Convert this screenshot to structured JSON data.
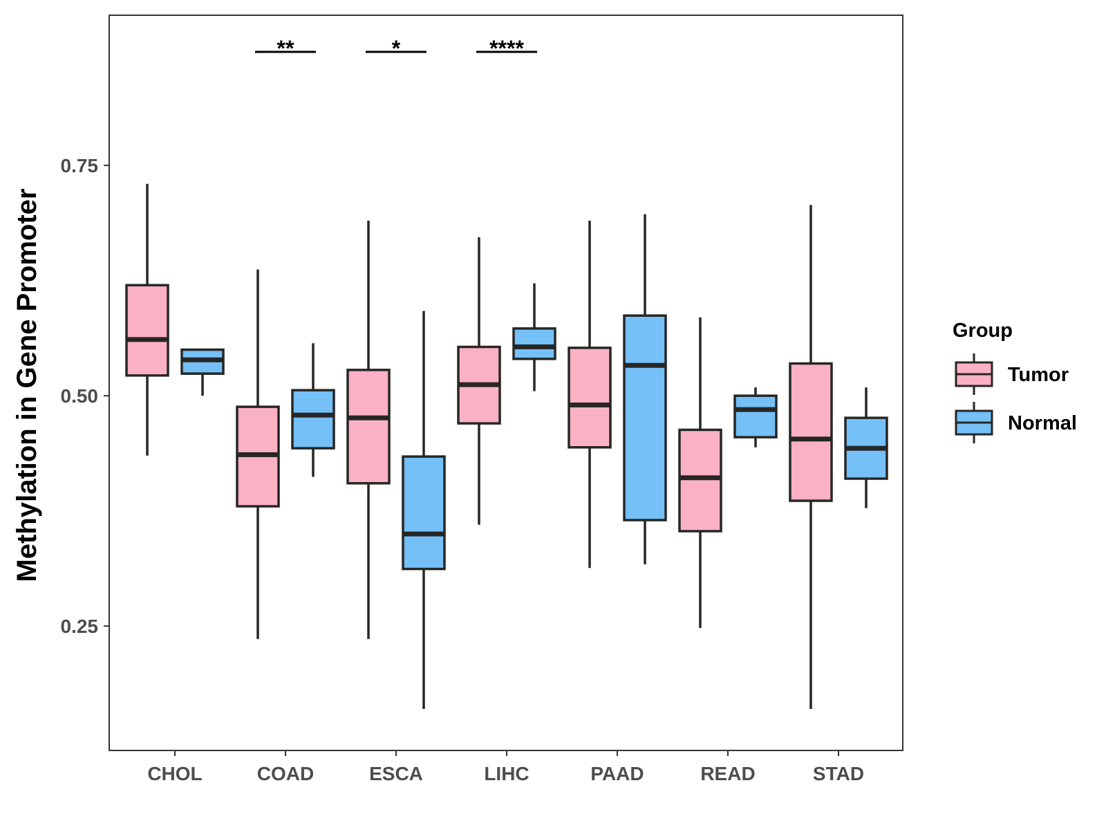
{
  "chart_data": {
    "type": "boxplot",
    "title": "",
    "xlabel": "",
    "ylabel": "Methylation in Gene Promoter",
    "ylim": [
      0.115,
      0.913
    ],
    "yticks": [
      0.25,
      0.5,
      0.75
    ],
    "ytick_labels": [
      "0.25",
      "0.50",
      "0.75"
    ],
    "categories": [
      "CHOL",
      "COAD",
      "ESCA",
      "LIHC",
      "PAAD",
      "READ",
      "STAD"
    ],
    "legend": {
      "title": "Group",
      "position": "right",
      "entries": [
        {
          "name": "Tumor",
          "color": "#FBB1C4"
        },
        {
          "name": "Normal",
          "color": "#74C0F7"
        }
      ]
    },
    "series": [
      {
        "name": "Tumor",
        "color": "#FBB1C4",
        "boxes": [
          {
            "category": "CHOL",
            "min": 0.435,
            "q1": 0.522,
            "median": 0.561,
            "q3": 0.62,
            "max": 0.73
          },
          {
            "category": "COAD",
            "min": 0.236,
            "q1": 0.38,
            "median": 0.436,
            "q3": 0.488,
            "max": 0.637
          },
          {
            "category": "ESCA",
            "min": 0.236,
            "q1": 0.405,
            "median": 0.476,
            "q3": 0.528,
            "max": 0.69
          },
          {
            "category": "LIHC",
            "min": 0.36,
            "q1": 0.47,
            "median": 0.512,
            "q3": 0.553,
            "max": 0.672
          },
          {
            "category": "PAAD",
            "min": 0.313,
            "q1": 0.444,
            "median": 0.49,
            "q3": 0.552,
            "max": 0.69
          },
          {
            "category": "READ",
            "min": 0.248,
            "q1": 0.353,
            "median": 0.411,
            "q3": 0.463,
            "max": 0.585
          },
          {
            "category": "STAD",
            "min": 0.16,
            "q1": 0.386,
            "median": 0.453,
            "q3": 0.535,
            "max": 0.707
          }
        ]
      },
      {
        "name": "Normal",
        "color": "#74C0F7",
        "boxes": [
          {
            "category": "CHOL",
            "min": 0.5,
            "q1": 0.524,
            "median": 0.539,
            "q3": 0.55,
            "max": 0.55
          },
          {
            "category": "COAD",
            "min": 0.412,
            "q1": 0.443,
            "median": 0.479,
            "q3": 0.506,
            "max": 0.557
          },
          {
            "category": "ESCA",
            "min": 0.16,
            "q1": 0.312,
            "median": 0.35,
            "q3": 0.434,
            "max": 0.592
          },
          {
            "category": "LIHC",
            "min": 0.505,
            "q1": 0.54,
            "median": 0.553,
            "q3": 0.573,
            "max": 0.622
          },
          {
            "category": "PAAD",
            "min": 0.317,
            "q1": 0.365,
            "median": 0.533,
            "q3": 0.587,
            "max": 0.697
          },
          {
            "category": "READ",
            "min": 0.444,
            "q1": 0.455,
            "median": 0.485,
            "q3": 0.5,
            "max": 0.509
          },
          {
            "category": "STAD",
            "min": 0.378,
            "q1": 0.41,
            "median": 0.443,
            "q3": 0.476,
            "max": 0.509
          }
        ]
      }
    ],
    "annotations": [
      {
        "category": "COAD",
        "label": "**"
      },
      {
        "category": "ESCA",
        "label": "*"
      },
      {
        "category": "LIHC",
        "label": "****"
      }
    ],
    "grid": false
  }
}
